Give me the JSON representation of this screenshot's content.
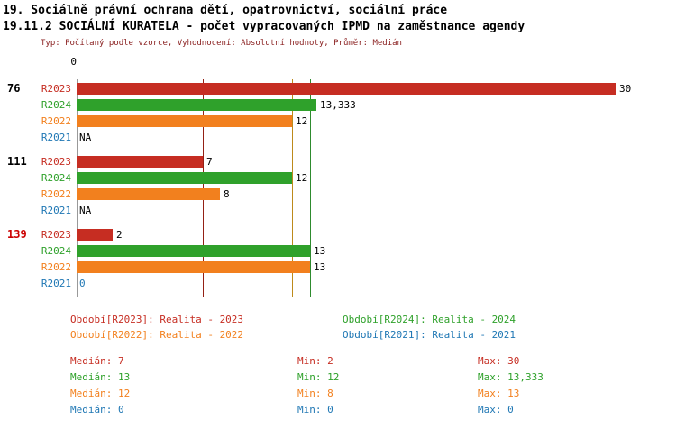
{
  "header": {
    "title": "19. Sociálně právní ochrana dětí, opatrovnictví, sociální práce",
    "subtitle": "19.11.2 SOCIÁLNÍ KURATELA - počet vypracovaných IPMD na zaměstnance agendy",
    "meta": "Typ: Počítaný podle vzorce, Vyhodnocení: Absolutní hodnoty, Průměr: Medián"
  },
  "chart_data": {
    "type": "bar",
    "orientation": "horizontal",
    "x_axis": {
      "min": 0,
      "max": 30,
      "zero_label": "0"
    },
    "series_order": [
      "R2023",
      "R2024",
      "R2022",
      "R2021"
    ],
    "series_colors": {
      "R2023": "#c62d22",
      "R2024": "#2fa12b",
      "R2022": "#f2801e",
      "R2021": "#1f77b4"
    },
    "groups": [
      {
        "label": "76",
        "label_color": "#000000",
        "bars": [
          {
            "series": "R2023",
            "value": 30,
            "display": "30"
          },
          {
            "series": "R2024",
            "value": 13.333,
            "display": "13,333"
          },
          {
            "series": "R2022",
            "value": 12,
            "display": "12"
          },
          {
            "series": "R2021",
            "value": null,
            "display": "NA"
          }
        ]
      },
      {
        "label": "111",
        "label_color": "#000000",
        "bars": [
          {
            "series": "R2023",
            "value": 7,
            "display": "7"
          },
          {
            "series": "R2024",
            "value": 12,
            "display": "12"
          },
          {
            "series": "R2022",
            "value": 8,
            "display": "8"
          },
          {
            "series": "R2021",
            "value": null,
            "display": "NA"
          }
        ]
      },
      {
        "label": "139",
        "label_color": "#cc0000",
        "bars": [
          {
            "series": "R2023",
            "value": 2,
            "display": "2"
          },
          {
            "series": "R2024",
            "value": 13,
            "display": "13"
          },
          {
            "series": "R2022",
            "value": 13,
            "display": "13"
          },
          {
            "series": "R2021",
            "value": 0,
            "display": "0",
            "value_color": "#1f77b4"
          }
        ]
      }
    ],
    "median_lines": [
      {
        "series": "R2023",
        "value": 7,
        "color": "#932015"
      },
      {
        "series": "R2022",
        "value": 12,
        "color": "#bd8a1b"
      },
      {
        "series": "R2024",
        "value": 13,
        "color": "#2e8b2e"
      }
    ]
  },
  "legend": {
    "items": [
      {
        "series": "R2023",
        "label": "Období[R2023]: Realita - 2023",
        "row": 0,
        "col": 0
      },
      {
        "series": "R2024",
        "label": "Období[R2024]: Realita - 2024",
        "row": 0,
        "col": 1
      },
      {
        "series": "R2022",
        "label": "Období[R2022]: Realita - 2022",
        "row": 1,
        "col": 0
      },
      {
        "series": "R2021",
        "label": "Období[R2021]: Realita - 2021",
        "row": 1,
        "col": 1
      }
    ]
  },
  "stats": {
    "median_label": "Medián",
    "min_label": "Min",
    "max_label": "Max",
    "rows": [
      {
        "series": "R2023",
        "median": "7",
        "min": "2",
        "max": "30"
      },
      {
        "series": "R2024",
        "median": "13",
        "min": "12",
        "max": "13,333"
      },
      {
        "series": "R2022",
        "median": "12",
        "min": "8",
        "max": "13"
      },
      {
        "series": "R2021",
        "median": "0",
        "min": "0",
        "max": "0"
      }
    ]
  }
}
